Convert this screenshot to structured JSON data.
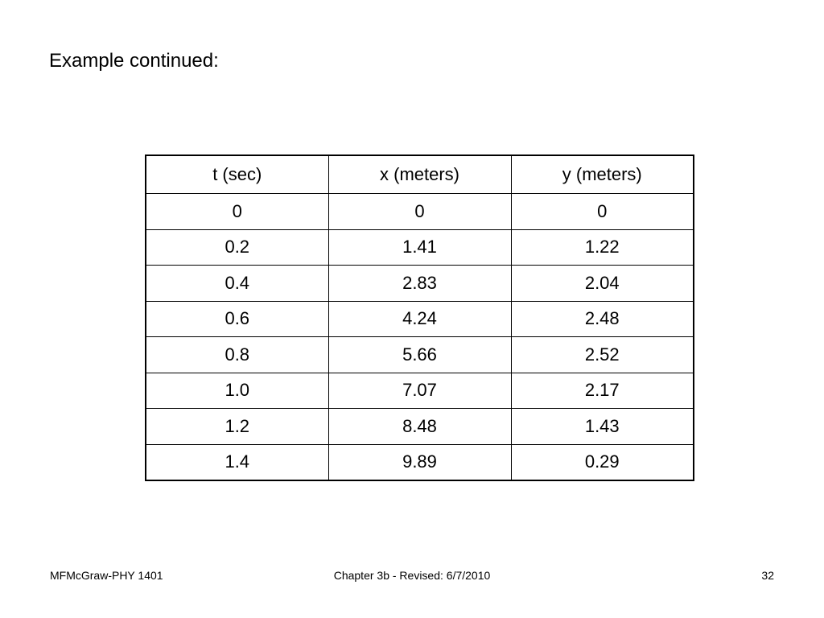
{
  "header": {
    "title": "Example continued:"
  },
  "table": {
    "columns": [
      "t (sec)",
      "x (meters)",
      "y (meters)"
    ],
    "rows": [
      [
        "0",
        "0",
        "0"
      ],
      [
        "0.2",
        "1.41",
        "1.22"
      ],
      [
        "0.4",
        "2.83",
        "2.04"
      ],
      [
        "0.6",
        "4.24",
        "2.48"
      ],
      [
        "0.8",
        "5.66",
        "2.52"
      ],
      [
        "1.0",
        "7.07",
        "2.17"
      ],
      [
        "1.2",
        "8.48",
        "1.43"
      ],
      [
        "1.4",
        "9.89",
        "0.29"
      ]
    ]
  },
  "footer": {
    "left": "MFMcGraw-PHY 1401",
    "center": "Chapter 3b - Revised: 6/7/2010",
    "right": "32"
  }
}
